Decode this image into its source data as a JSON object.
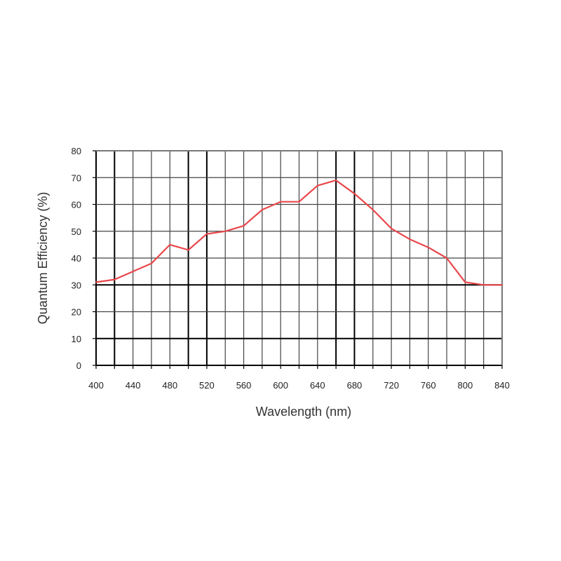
{
  "chart_data": {
    "type": "line",
    "title": "",
    "xlabel": "Wavelength (nm)",
    "ylabel": "Quantum Efficiency (%)",
    "xlim": [
      400,
      840
    ],
    "ylim": [
      0,
      80
    ],
    "x_ticks": [
      400,
      440,
      480,
      520,
      560,
      600,
      640,
      680,
      720,
      760,
      800,
      840
    ],
    "y_ticks": [
      0,
      10,
      20,
      30,
      40,
      50,
      60,
      70,
      80
    ],
    "grid": true,
    "x": [
      400,
      420,
      440,
      460,
      480,
      500,
      520,
      540,
      560,
      580,
      600,
      620,
      640,
      660,
      680,
      700,
      720,
      740,
      760,
      780,
      800,
      820,
      840
    ],
    "series": [
      {
        "color": "#e8474b",
        "values": [
          31,
          32,
          35,
          38,
          45,
          43,
          49,
          50,
          52,
          58,
          61,
          61,
          67,
          69,
          64,
          58,
          51,
          47,
          44,
          40,
          31,
          30,
          30
        ]
      }
    ]
  }
}
